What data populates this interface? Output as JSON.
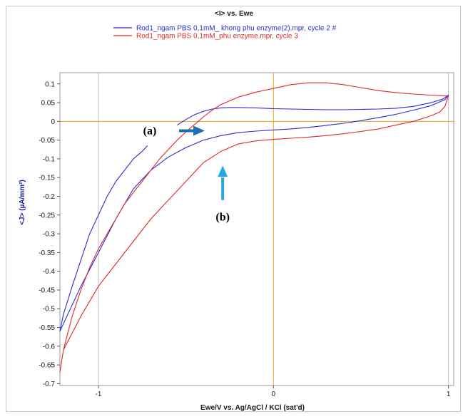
{
  "chart_data": {
    "type": "line",
    "title": "<I> vs. Ewe",
    "xlabel": "Ewe/V vs. Ag/AgCl / KCl (sat'd)",
    "ylabel": "<J> (µA/mm²)",
    "xlim": [
      -1.22,
      1.03
    ],
    "ylim": [
      -0.705,
      0.13
    ],
    "x_ticks": [
      -1,
      0,
      1
    ],
    "y_ticks": [
      0.1,
      0.05,
      0,
      -0.05,
      -0.1,
      -0.15,
      -0.2,
      -0.25,
      -0.3,
      -0.35,
      -0.4,
      -0.45,
      -0.5,
      -0.55,
      -0.6,
      -0.65,
      -0.7
    ],
    "y_tick_labels": [
      "0.1",
      "0.05",
      "0",
      "-0.05",
      "-0.1",
      "-0.15",
      "-0.2",
      "-0.25",
      "-0.3",
      "-0.35",
      "-0.4",
      "-0.45",
      "-0.5",
      "-0.55",
      "-0.6",
      "-0.65",
      "-0.7"
    ],
    "x_tick_labels": [
      "-1",
      "0",
      "1"
    ],
    "grid": true,
    "zero_lines_color": "#f0a020",
    "legend_position": "top-center",
    "series": [
      {
        "name": "Rod1_ngam PBS 0,1mM_ khong phu enzyme(2).mpr, cycle 2 #",
        "color": "#2a2ad6",
        "x": [
          -0.55,
          -0.5,
          -0.45,
          -0.4,
          -0.35,
          -0.3,
          -0.25,
          -0.2,
          -0.1,
          0.0,
          0.1,
          0.2,
          0.3,
          0.4,
          0.5,
          0.6,
          0.7,
          0.8,
          0.9,
          0.97,
          1.0,
          0.98,
          0.9,
          0.8,
          0.7,
          0.6,
          0.5,
          0.4,
          0.3,
          0.2,
          0.1,
          0.0,
          -0.1,
          -0.2,
          -0.3,
          -0.4,
          -0.5,
          -0.6,
          -0.7,
          -0.8,
          -0.9,
          -1.0,
          -1.1,
          -1.18,
          -1.22,
          -1.2,
          -1.15,
          -1.1,
          -1.05,
          -1.0,
          -0.95,
          -0.9,
          -0.85,
          -0.8,
          -0.75,
          -0.72
        ],
        "y": [
          -0.01,
          0.005,
          0.018,
          0.027,
          0.033,
          0.036,
          0.037,
          0.037,
          0.036,
          0.034,
          0.033,
          0.032,
          0.031,
          0.031,
          0.032,
          0.033,
          0.035,
          0.04,
          0.05,
          0.06,
          0.07,
          0.058,
          0.042,
          0.03,
          0.019,
          0.01,
          0.002,
          -0.005,
          -0.011,
          -0.016,
          -0.02,
          -0.023,
          -0.026,
          -0.03,
          -0.038,
          -0.05,
          -0.07,
          -0.095,
          -0.13,
          -0.18,
          -0.26,
          -0.35,
          -0.44,
          -0.52,
          -0.56,
          -0.515,
          -0.44,
          -0.37,
          -0.3,
          -0.25,
          -0.2,
          -0.16,
          -0.13,
          -0.1,
          -0.08,
          -0.065
        ]
      },
      {
        "name": "Rod1_ngam PBS 0,1mM_phu enzyme.mpr, cycle 3",
        "color": "#e02828",
        "x": [
          -1.22,
          -1.2,
          -1.15,
          -1.1,
          -1.05,
          -1.0,
          -0.95,
          -0.9,
          -0.85,
          -0.8,
          -0.75,
          -0.7,
          -0.65,
          -0.6,
          -0.55,
          -0.5,
          -0.45,
          -0.4,
          -0.35,
          -0.3,
          -0.2,
          -0.1,
          0.0,
          0.1,
          0.2,
          0.3,
          0.4,
          0.5,
          0.6,
          0.7,
          0.8,
          0.9,
          0.97,
          1.0,
          0.98,
          0.95,
          0.9,
          0.8,
          0.7,
          0.6,
          0.5,
          0.4,
          0.3,
          0.2,
          0.1,
          0.0,
          -0.1,
          -0.2,
          -0.3,
          -0.4,
          -0.5,
          -0.6,
          -0.7,
          -0.8,
          -0.9,
          -1.0,
          -1.1,
          -1.2,
          -1.22
        ],
        "y": [
          -0.67,
          -0.61,
          -0.52,
          -0.45,
          -0.39,
          -0.34,
          -0.3,
          -0.26,
          -0.22,
          -0.19,
          -0.16,
          -0.13,
          -0.1,
          -0.075,
          -0.05,
          -0.028,
          -0.008,
          0.012,
          0.03,
          0.045,
          0.065,
          0.078,
          0.088,
          0.098,
          0.103,
          0.103,
          0.098,
          0.09,
          0.082,
          0.077,
          0.073,
          0.07,
          0.068,
          0.068,
          0.04,
          0.025,
          0.015,
          0.0,
          -0.01,
          -0.02,
          -0.027,
          -0.033,
          -0.038,
          -0.042,
          -0.045,
          -0.048,
          -0.052,
          -0.06,
          -0.08,
          -0.11,
          -0.16,
          -0.21,
          -0.26,
          -0.32,
          -0.38,
          -0.44,
          -0.52,
          -0.61,
          -0.67
        ]
      }
    ],
    "annotations": [
      {
        "label": "(a)",
        "arrow_color": "#1f6fb0",
        "points_at": [
          -0.4,
          -0.03
        ]
      },
      {
        "label": "(b)",
        "arrow_color": "#29a6e0",
        "points_at": [
          -0.3,
          -0.12
        ]
      }
    ]
  }
}
